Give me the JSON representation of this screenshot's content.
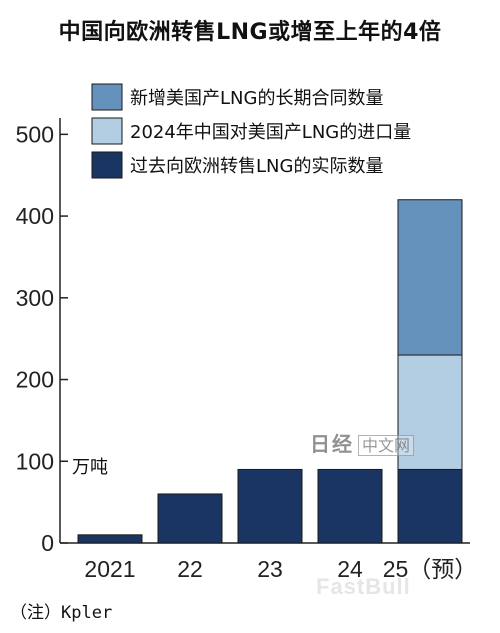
{
  "title": "中国向欧洲转售LNG或增至上年的4倍",
  "source": "（注）Kpler",
  "watermarks": {
    "nikkei_brand": "日经",
    "nikkei_text": "中文网",
    "fastbull": "FastBull"
  },
  "chart_data": {
    "type": "bar",
    "stacked": true,
    "title": "中国向欧洲转售LNG或增至上年的4倍",
    "unit_label": "万吨",
    "categories": [
      "2021",
      "22",
      "23",
      "24",
      "25（预）"
    ],
    "ylim": [
      0,
      520
    ],
    "yticks": [
      0,
      100,
      200,
      300,
      400,
      500
    ],
    "grid": false,
    "legend_position": "top-right",
    "series": [
      {
        "name": "过去向欧洲转售LNG的实际数量",
        "values": [
          10,
          60,
          90,
          90,
          90
        ],
        "color": "#1b3562"
      },
      {
        "name": "2024年中国对美国产LNG的进口量",
        "values": [
          0,
          0,
          0,
          0,
          140
        ],
        "color": "#b3cde3"
      },
      {
        "name": "新增美国产LNG的长期合同数量",
        "values": [
          0,
          0,
          0,
          0,
          190
        ],
        "color": "#6591bd"
      }
    ],
    "legend_order": [
      2,
      1,
      0
    ]
  }
}
